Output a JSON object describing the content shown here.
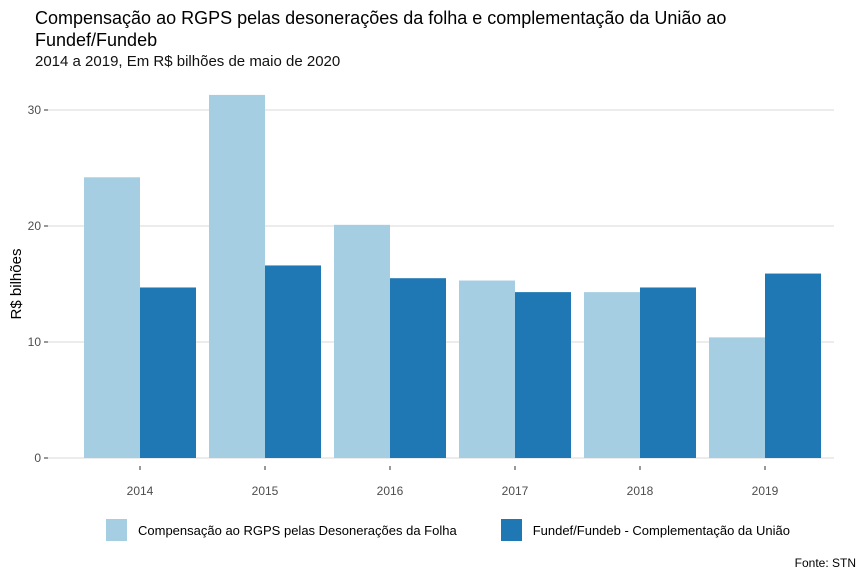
{
  "header": {
    "title": "Compensação ao RGPS pelas desonerações da folha e complementação da União ao Fundef/Fundeb",
    "subtitle": "2014 a 2019, Em R$ bilhões de maio de 2020"
  },
  "source": "Fonte: STN",
  "colors": {
    "series1": "#a6cee3",
    "series2": "#1f78b4",
    "grid": "#d9d9d9"
  },
  "chart_data": {
    "type": "bar",
    "title": "Compensação ao RGPS pelas desonerações da folha e complementação da União ao Fundef/Fundeb",
    "subtitle": "2014 a 2019, Em R$ bilhões de maio de 2020",
    "xlabel": "",
    "ylabel": "R$ bilhões",
    "categories": [
      "2014",
      "2015",
      "2016",
      "2017",
      "2018",
      "2019"
    ],
    "series": [
      {
        "name": "Compensação ao RGPS pelas Desonerações da Folha",
        "color": "#a6cee3",
        "values": [
          24.2,
          31.3,
          20.1,
          15.3,
          14.3,
          10.4
        ]
      },
      {
        "name": "Fundef/Fundeb - Complementação da União",
        "color": "#1f78b4",
        "values": [
          14.7,
          16.6,
          15.5,
          14.3,
          14.7,
          15.9
        ]
      }
    ],
    "ylim": [
      0,
      32
    ],
    "yticks": [
      0,
      10,
      20,
      30
    ],
    "grid": true,
    "legend_position": "bottom",
    "source": "Fonte: STN"
  }
}
